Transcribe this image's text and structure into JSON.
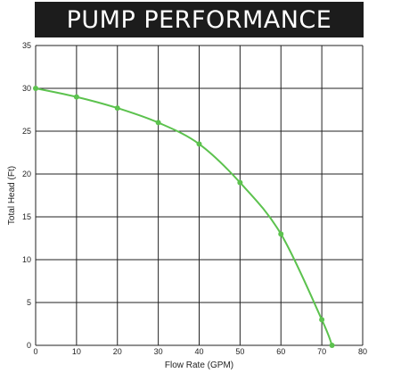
{
  "chart_data": {
    "type": "line",
    "title": "PUMP PERFORMANCE",
    "xlabel": "Flow Rate (GPM)",
    "ylabel": "Total Head (Ft)",
    "xlim": [
      0,
      80
    ],
    "ylim": [
      0,
      35
    ],
    "x_ticks": [
      "0",
      "10",
      "20",
      "30",
      "40",
      "50",
      "60",
      "70",
      "80"
    ],
    "y_ticks": [
      "0",
      "5",
      "10",
      "15",
      "20",
      "25",
      "30",
      "35"
    ],
    "grid": true,
    "series": [
      {
        "color": "#5cc24e",
        "x": [
          0,
          10,
          20,
          30,
          40,
          50,
          60,
          70,
          72.5
        ],
        "y": [
          30,
          29,
          27.7,
          26,
          23.5,
          19,
          13,
          3,
          0
        ]
      }
    ]
  }
}
